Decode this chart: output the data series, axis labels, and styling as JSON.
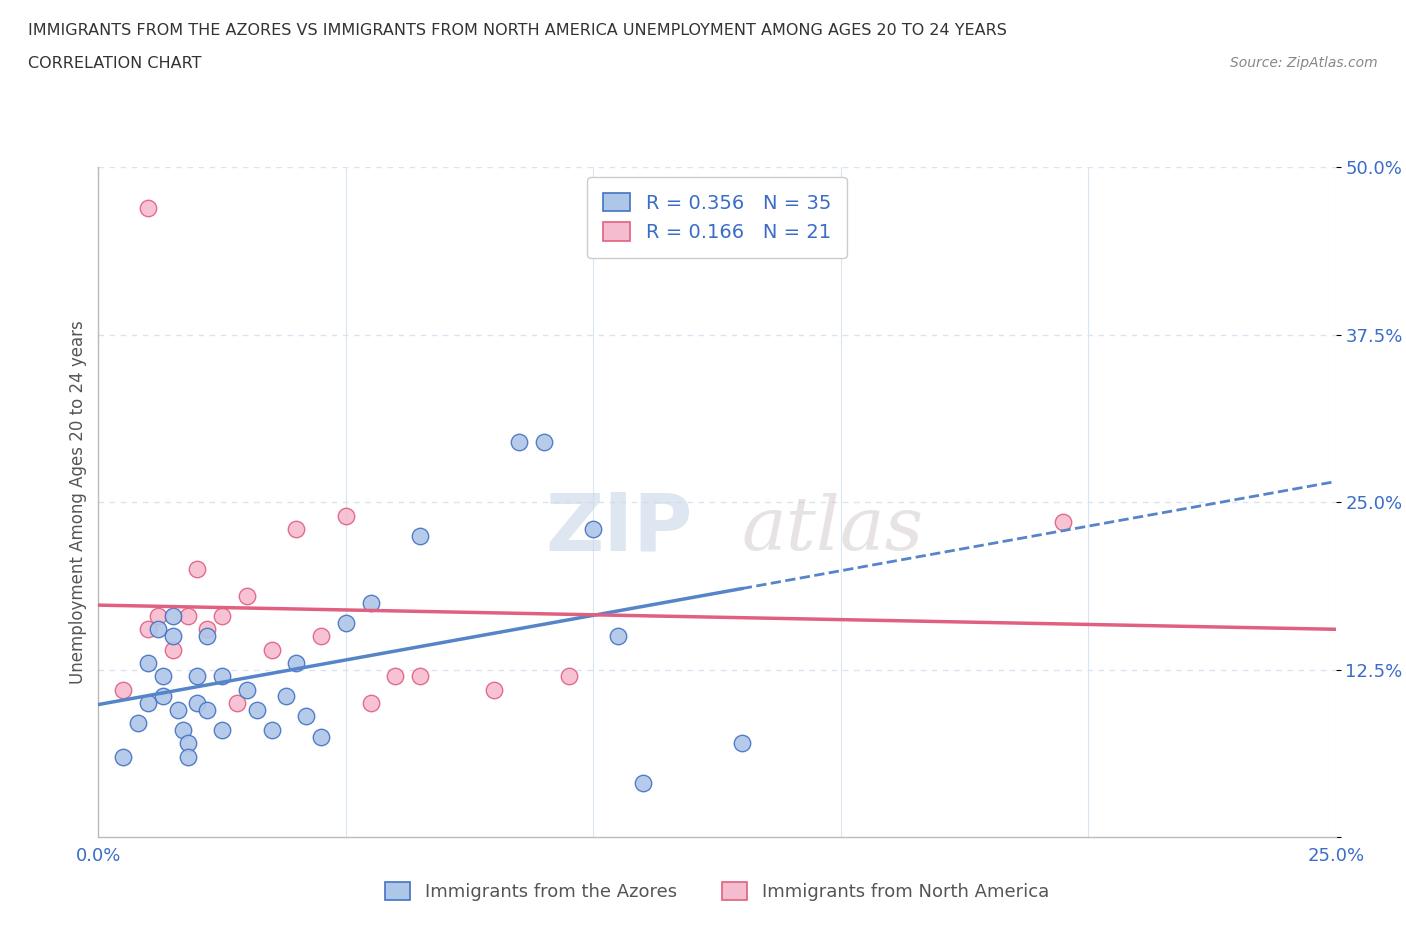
{
  "title_line1": "IMMIGRANTS FROM THE AZORES VS IMMIGRANTS FROM NORTH AMERICA UNEMPLOYMENT AMONG AGES 20 TO 24 YEARS",
  "title_line2": "CORRELATION CHART",
  "source": "Source: ZipAtlas.com",
  "ylabel": "Unemployment Among Ages 20 to 24 years",
  "legend_label1": "Immigrants from the Azores",
  "legend_label2": "Immigrants from North America",
  "r1": 0.356,
  "n1": 35,
  "r2": 0.166,
  "n2": 21,
  "color_blue": "#aec6e8",
  "color_pink": "#f5bcd0",
  "line_blue": "#4472c4",
  "line_pink": "#e06080",
  "trend_blue": "#5585c8",
  "trend_pink": "#e06080",
  "xlim": [
    0.0,
    0.25
  ],
  "ylim": [
    0.0,
    0.5
  ],
  "xticks": [
    0.0,
    0.05,
    0.1,
    0.15,
    0.2,
    0.25
  ],
  "yticks": [
    0.0,
    0.125,
    0.25,
    0.375,
    0.5
  ],
  "blue_x": [
    0.005,
    0.008,
    0.01,
    0.01,
    0.012,
    0.013,
    0.013,
    0.015,
    0.015,
    0.016,
    0.017,
    0.018,
    0.018,
    0.02,
    0.02,
    0.022,
    0.022,
    0.025,
    0.025,
    0.03,
    0.032,
    0.035,
    0.038,
    0.04,
    0.042,
    0.045,
    0.05,
    0.055,
    0.065,
    0.085,
    0.09,
    0.1,
    0.105,
    0.11,
    0.13
  ],
  "blue_y": [
    0.06,
    0.085,
    0.1,
    0.13,
    0.155,
    0.12,
    0.105,
    0.15,
    0.165,
    0.095,
    0.08,
    0.07,
    0.06,
    0.12,
    0.1,
    0.15,
    0.095,
    0.12,
    0.08,
    0.11,
    0.095,
    0.08,
    0.105,
    0.13,
    0.09,
    0.075,
    0.16,
    0.175,
    0.225,
    0.295,
    0.295,
    0.23,
    0.15,
    0.04,
    0.07
  ],
  "pink_x": [
    0.005,
    0.01,
    0.012,
    0.015,
    0.018,
    0.02,
    0.022,
    0.025,
    0.028,
    0.03,
    0.035,
    0.04,
    0.045,
    0.05,
    0.055,
    0.06,
    0.065,
    0.08,
    0.095,
    0.195,
    0.01
  ],
  "pink_y": [
    0.11,
    0.155,
    0.165,
    0.14,
    0.165,
    0.2,
    0.155,
    0.165,
    0.1,
    0.18,
    0.14,
    0.23,
    0.15,
    0.24,
    0.1,
    0.12,
    0.12,
    0.11,
    0.12,
    0.235,
    0.47
  ],
  "watermark_zip": "ZIP",
  "watermark_atlas": "atlas",
  "background_color": "#ffffff",
  "grid_color_h": "#d8e4f0",
  "grid_color_v": "#d8e4f0"
}
